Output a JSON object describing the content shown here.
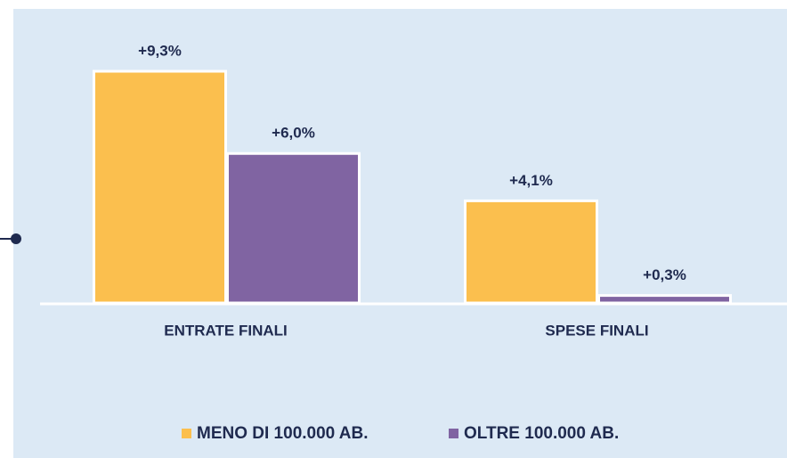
{
  "chart_data": {
    "type": "bar",
    "categories": [
      "ENTRATE FINALI",
      "SPESE FINALI"
    ],
    "series": [
      {
        "name": "MENO DI 100.000 AB.",
        "color": "#fbbf4e",
        "values": [
          9.3,
          4.1
        ],
        "value_labels": [
          "+9,3%",
          "+4,1%"
        ]
      },
      {
        "name": "OLTRE 100.000 AB.",
        "color": "#8064a2",
        "values": [
          6.0,
          0.3
        ],
        "value_labels": [
          "+6,0%",
          "+0,3%"
        ]
      }
    ],
    "legend": "bottom"
  }
}
